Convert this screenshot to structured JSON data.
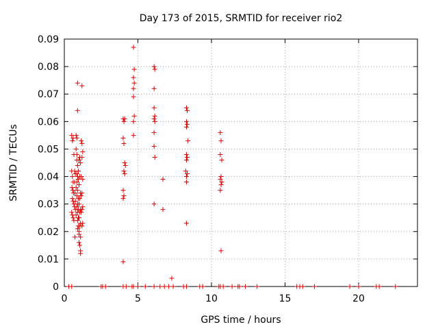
{
  "chart_data": {
    "type": "scatter",
    "title": "Day 173 of 2015, SRMTID for receiver rio2",
    "xlabel": "GPS time / hours",
    "ylabel": "SRMTID / TECUs",
    "xlim": [
      0,
      24
    ],
    "ylim": [
      0,
      0.09
    ],
    "xticks": [
      0,
      5,
      10,
      15,
      20
    ],
    "yticks": [
      0,
      0.01,
      0.02,
      0.03,
      0.04,
      0.05,
      0.06,
      0.07,
      0.08,
      0.09
    ],
    "xtick_labels": [
      "0",
      "5",
      "10",
      "15",
      "20"
    ],
    "ytick_labels": [
      "0",
      "0.01",
      "0.02",
      "0.03",
      "0.04",
      "0.05",
      "0.06",
      "0.07",
      "0.08",
      "0.09"
    ],
    "grid": true,
    "marker": "+",
    "color": "#dd0000",
    "points": [
      [
        0.5,
        0.055
      ],
      [
        0.55,
        0.053
      ],
      [
        0.6,
        0.054
      ],
      [
        0.65,
        0.048
      ],
      [
        0.5,
        0.042
      ],
      [
        0.55,
        0.04
      ],
      [
        0.6,
        0.038
      ],
      [
        0.52,
        0.036
      ],
      [
        0.58,
        0.035
      ],
      [
        0.62,
        0.034
      ],
      [
        0.55,
        0.032
      ],
      [
        0.6,
        0.031
      ],
      [
        0.65,
        0.03
      ],
      [
        0.5,
        0.027
      ],
      [
        0.55,
        0.026
      ],
      [
        0.6,
        0.025
      ],
      [
        0.65,
        0.024
      ],
      [
        0.7,
        0.042
      ],
      [
        0.75,
        0.041
      ],
      [
        0.7,
        0.038
      ],
      [
        0.72,
        0.034
      ],
      [
        0.75,
        0.031
      ],
      [
        0.7,
        0.029
      ],
      [
        0.75,
        0.028
      ],
      [
        0.72,
        0.018
      ],
      [
        0.8,
        0.055
      ],
      [
        0.85,
        0.054
      ],
      [
        0.8,
        0.05
      ],
      [
        0.85,
        0.048
      ],
      [
        0.9,
        0.064
      ],
      [
        0.9,
        0.074
      ],
      [
        0.85,
        0.046
      ],
      [
        0.9,
        0.044
      ],
      [
        0.95,
        0.042
      ],
      [
        0.85,
        0.041
      ],
      [
        0.9,
        0.04
      ],
      [
        0.95,
        0.039
      ],
      [
        0.85,
        0.038
      ],
      [
        0.8,
        0.036
      ],
      [
        0.9,
        0.035
      ],
      [
        0.85,
        0.033
      ],
      [
        0.95,
        0.032
      ],
      [
        0.9,
        0.03
      ],
      [
        0.85,
        0.029
      ],
      [
        0.95,
        0.028
      ],
      [
        0.9,
        0.027
      ],
      [
        0.8,
        0.026
      ],
      [
        0.95,
        0.025
      ],
      [
        0.9,
        0.024
      ],
      [
        0.95,
        0.022
      ],
      [
        0.9,
        0.021
      ],
      [
        1.0,
        0.019
      ],
      [
        1.0,
        0.016
      ],
      [
        1.05,
        0.015
      ],
      [
        1.1,
        0.013
      ],
      [
        1.1,
        0.012
      ],
      [
        1.05,
        0.047
      ],
      [
        1.0,
        0.046
      ],
      [
        1.1,
        0.045
      ],
      [
        1.05,
        0.04
      ],
      [
        1.0,
        0.037
      ],
      [
        1.1,
        0.034
      ],
      [
        1.05,
        0.032
      ],
      [
        1.0,
        0.03
      ],
      [
        1.1,
        0.028
      ],
      [
        1.05,
        0.027
      ],
      [
        1.0,
        0.025
      ],
      [
        1.1,
        0.023
      ],
      [
        1.05,
        0.022
      ],
      [
        1.0,
        0.02
      ],
      [
        1.1,
        0.018
      ],
      [
        1.2,
        0.073
      ],
      [
        1.15,
        0.053
      ],
      [
        1.2,
        0.052
      ],
      [
        1.25,
        0.049
      ],
      [
        1.2,
        0.047
      ],
      [
        1.15,
        0.04
      ],
      [
        1.25,
        0.039
      ],
      [
        1.2,
        0.034
      ],
      [
        1.15,
        0.033
      ],
      [
        1.25,
        0.029
      ],
      [
        1.2,
        0.028
      ],
      [
        1.15,
        0.027
      ],
      [
        1.25,
        0.023
      ],
      [
        1.2,
        0.022
      ],
      [
        4.0,
        0.061
      ],
      [
        4.05,
        0.06
      ],
      [
        4.1,
        0.061
      ],
      [
        4.0,
        0.054
      ],
      [
        4.05,
        0.052
      ],
      [
        4.1,
        0.045
      ],
      [
        4.15,
        0.044
      ],
      [
        4.05,
        0.042
      ],
      [
        4.1,
        0.041
      ],
      [
        4.0,
        0.035
      ],
      [
        4.05,
        0.033
      ],
      [
        4.0,
        0.032
      ],
      [
        4.0,
        0.009
      ],
      [
        4.7,
        0.087
      ],
      [
        4.75,
        0.079
      ],
      [
        4.7,
        0.076
      ],
      [
        4.75,
        0.074
      ],
      [
        4.7,
        0.072
      ],
      [
        4.7,
        0.069
      ],
      [
        4.75,
        0.062
      ],
      [
        4.7,
        0.06
      ],
      [
        4.7,
        0.055
      ],
      [
        6.1,
        0.08
      ],
      [
        6.15,
        0.079
      ],
      [
        6.1,
        0.072
      ],
      [
        6.1,
        0.065
      ],
      [
        6.15,
        0.062
      ],
      [
        6.1,
        0.061
      ],
      [
        6.15,
        0.06
      ],
      [
        6.1,
        0.056
      ],
      [
        6.1,
        0.051
      ],
      [
        6.15,
        0.047
      ],
      [
        6.1,
        0.03
      ],
      [
        6.7,
        0.039
      ],
      [
        6.7,
        0.028
      ],
      [
        7.3,
        0.003
      ],
      [
        8.3,
        0.065
      ],
      [
        8.35,
        0.064
      ],
      [
        8.3,
        0.06
      ],
      [
        8.35,
        0.059
      ],
      [
        8.3,
        0.058
      ],
      [
        8.4,
        0.053
      ],
      [
        8.3,
        0.048
      ],
      [
        8.35,
        0.047
      ],
      [
        8.3,
        0.046
      ],
      [
        8.25,
        0.042
      ],
      [
        8.35,
        0.041
      ],
      [
        8.3,
        0.04
      ],
      [
        8.3,
        0.038
      ],
      [
        8.3,
        0.023
      ],
      [
        10.6,
        0.056
      ],
      [
        10.65,
        0.053
      ],
      [
        10.6,
        0.048
      ],
      [
        10.7,
        0.046
      ],
      [
        10.65,
        0.04
      ],
      [
        10.6,
        0.039
      ],
      [
        10.7,
        0.038
      ],
      [
        10.65,
        0.037
      ],
      [
        10.6,
        0.035
      ],
      [
        10.65,
        0.013
      ],
      [
        0.3,
        0.0
      ],
      [
        0.5,
        0.0
      ],
      [
        2.5,
        0.0
      ],
      [
        2.6,
        0.0
      ],
      [
        2.8,
        0.0
      ],
      [
        4.0,
        0.0
      ],
      [
        4.2,
        0.0
      ],
      [
        4.6,
        0.0
      ],
      [
        4.7,
        0.0
      ],
      [
        5.0,
        0.0
      ],
      [
        5.5,
        0.0
      ],
      [
        6.1,
        0.0
      ],
      [
        6.5,
        0.0
      ],
      [
        6.8,
        0.0
      ],
      [
        7.1,
        0.0
      ],
      [
        7.4,
        0.0
      ],
      [
        8.1,
        0.0
      ],
      [
        8.3,
        0.0
      ],
      [
        9.2,
        0.0
      ],
      [
        9.4,
        0.0
      ],
      [
        10.5,
        0.0
      ],
      [
        10.6,
        0.0
      ],
      [
        10.8,
        0.0
      ],
      [
        11.4,
        0.0
      ],
      [
        11.8,
        0.0
      ],
      [
        11.9,
        0.0
      ],
      [
        12.3,
        0.0
      ],
      [
        13.1,
        0.0
      ],
      [
        15.8,
        0.0
      ],
      [
        16.0,
        0.0
      ],
      [
        16.2,
        0.0
      ],
      [
        17.0,
        0.0
      ],
      [
        19.4,
        0.0
      ],
      [
        20.0,
        0.0
      ],
      [
        21.2,
        0.0
      ],
      [
        21.4,
        0.0
      ],
      [
        22.5,
        0.0
      ]
    ]
  }
}
